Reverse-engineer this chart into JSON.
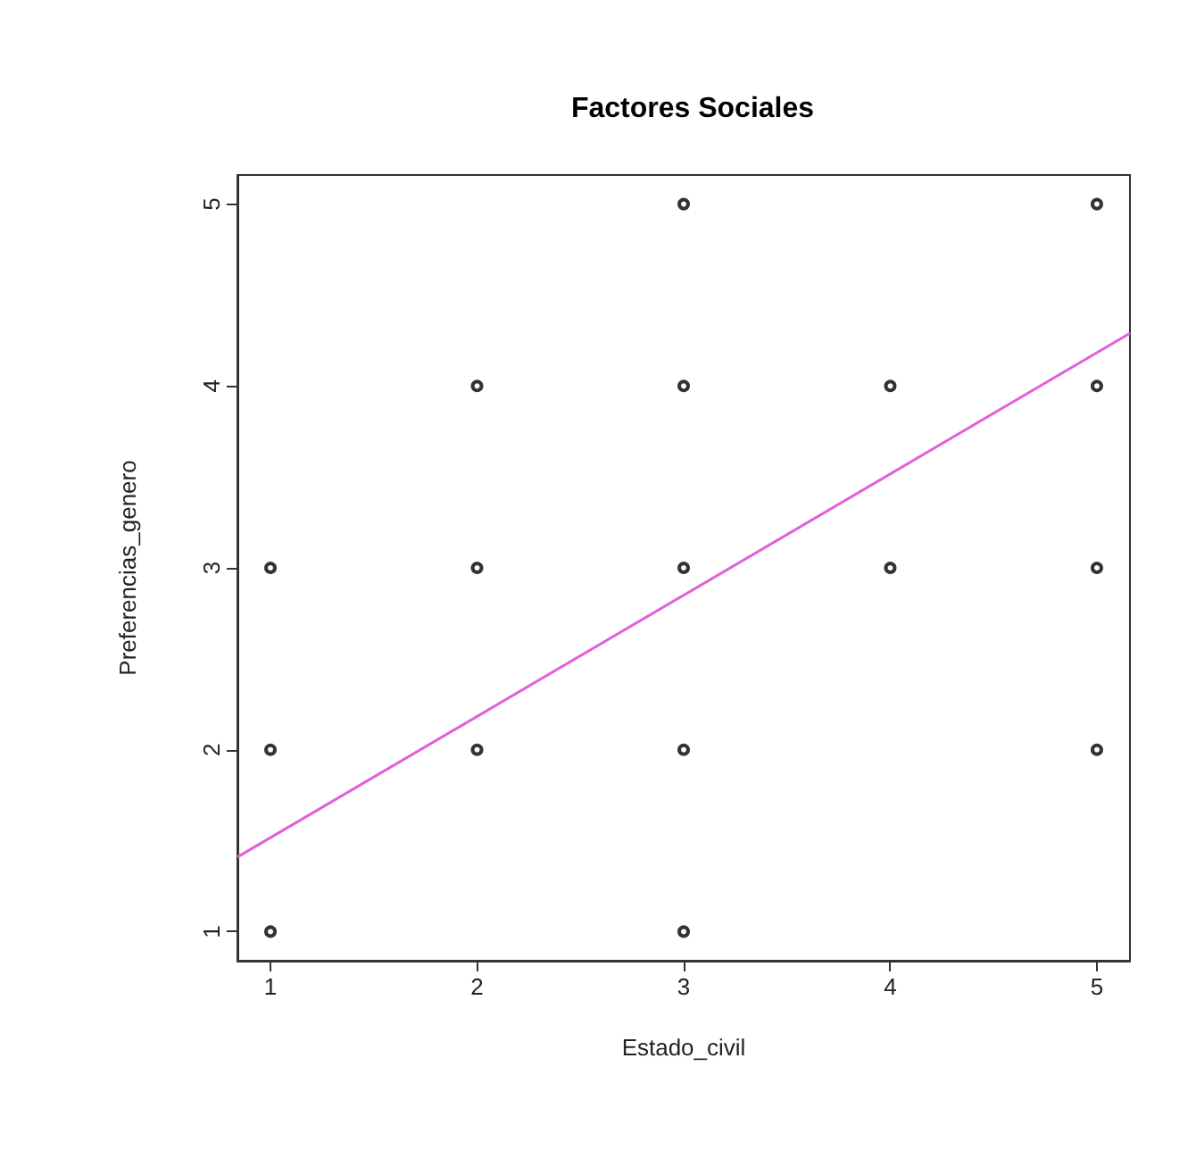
{
  "chart_data": {
    "type": "scatter",
    "title": "Factores Sociales",
    "xlabel": "Estado_civil",
    "ylabel": "Preferencias_genero",
    "xlim": [
      0.84,
      5.16
    ],
    "ylim": [
      0.84,
      5.16
    ],
    "xticks": [
      1,
      2,
      3,
      4,
      5
    ],
    "yticks": [
      1,
      2,
      3,
      4,
      5
    ],
    "grid": false,
    "series": [
      {
        "color": "#000000",
        "marker": "circle",
        "x": [
          1,
          1,
          1,
          2,
          2,
          2,
          3,
          3,
          3,
          3,
          3,
          4,
          4,
          5,
          5,
          5,
          5
        ],
        "values": [
          1,
          2,
          3,
          2,
          3,
          4,
          1,
          2,
          3,
          4,
          5,
          3,
          4,
          2,
          3,
          4,
          5
        ]
      },
      {
        "type": "line",
        "color": "#e060d8",
        "marker": "none",
        "x": [
          0.84,
          5.16
        ],
        "values": [
          1.41,
          4.29
        ]
      }
    ]
  }
}
